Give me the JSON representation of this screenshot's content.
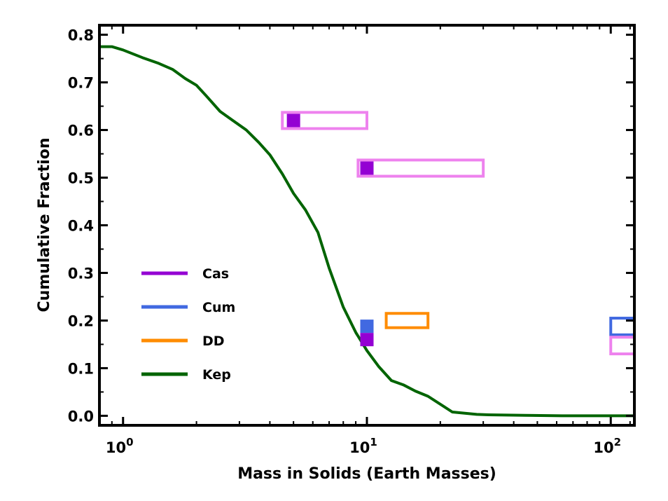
{
  "chart_data": {
    "type": "line",
    "xlabel": "Mass in Solids (Earth Masses)",
    "ylabel": "Cumulative Fraction",
    "xscale": "log",
    "xlim": [
      0.8,
      125
    ],
    "ylim": [
      -0.02,
      0.82
    ],
    "x_ticks": [
      {
        "value": 1,
        "base": "10",
        "exp": "0"
      },
      {
        "value": 10,
        "base": "10",
        "exp": "1"
      },
      {
        "value": 100,
        "base": "10",
        "exp": "2"
      }
    ],
    "y_ticks": [
      {
        "value": 0.0,
        "label": "0.0"
      },
      {
        "value": 0.1,
        "label": "0.1"
      },
      {
        "value": 0.2,
        "label": "0.2"
      },
      {
        "value": 0.3,
        "label": "0.3"
      },
      {
        "value": 0.4,
        "label": "0.4"
      },
      {
        "value": 0.5,
        "label": "0.5"
      },
      {
        "value": 0.6,
        "label": "0.6"
      },
      {
        "value": 0.7,
        "label": "0.7"
      },
      {
        "value": 0.8,
        "label": "0.8"
      }
    ],
    "legend": {
      "position": "lower-left",
      "entries": [
        {
          "label": "Cas",
          "color": "#9400d3"
        },
        {
          "label": "Cum",
          "color": "#4169e1"
        },
        {
          "label": "DD",
          "color": "#ff8c00"
        },
        {
          "label": "Kep",
          "color": "#006400"
        }
      ]
    },
    "series": [
      {
        "name": "Kep",
        "color": "#006400",
        "x": [
          0.8,
          0.9,
          1.0,
          1.2,
          1.4,
          1.6,
          1.8,
          2.0,
          2.2,
          2.5,
          2.8,
          3.2,
          3.6,
          4.0,
          4.5,
          5.0,
          5.6,
          6.3,
          7.0,
          8.0,
          9.0,
          10.0,
          11.2,
          12.6,
          14.1,
          15.8,
          17.8,
          22.4,
          28.2,
          31.6,
          44.7,
          63.1,
          100,
          125
        ],
        "y": [
          0.775,
          0.775,
          0.768,
          0.752,
          0.74,
          0.727,
          0.708,
          0.694,
          0.671,
          0.639,
          0.621,
          0.6,
          0.574,
          0.548,
          0.508,
          0.467,
          0.432,
          0.385,
          0.31,
          0.228,
          0.175,
          0.137,
          0.103,
          0.074,
          0.065,
          0.052,
          0.041,
          0.008,
          0.003,
          0.002,
          0.001,
          0.0,
          0.0,
          0.0
        ]
      }
    ],
    "markers": [
      {
        "series": "Cas",
        "x": 5.0,
        "y": 0.62,
        "color": "#9400d3"
      },
      {
        "series": "Cas",
        "x": 10.0,
        "y": 0.52,
        "color": "#9400d3"
      },
      {
        "series": "Cum",
        "x": 10.0,
        "y": 0.188,
        "color": "#4169e1"
      },
      {
        "series": "Cas",
        "x": 10.0,
        "y": 0.16,
        "color": "#9400d3"
      }
    ],
    "range_boxes": [
      {
        "x0": 4.5,
        "x1": 10.0,
        "y0": 0.603,
        "y1": 0.637,
        "color": "#ee82ee"
      },
      {
        "x0": 9.2,
        "x1": 30.0,
        "y0": 0.503,
        "y1": 0.537,
        "color": "#ee82ee"
      },
      {
        "x0": 12.0,
        "x1": 17.8,
        "y0": 0.185,
        "y1": 0.215,
        "color": "#ff8c00"
      },
      {
        "x0": 100,
        "x1": 130,
        "y0": 0.17,
        "y1": 0.205,
        "color": "#4169e1"
      },
      {
        "x0": 100,
        "x1": 130,
        "y0": 0.13,
        "y1": 0.165,
        "color": "#ee82ee"
      }
    ]
  }
}
